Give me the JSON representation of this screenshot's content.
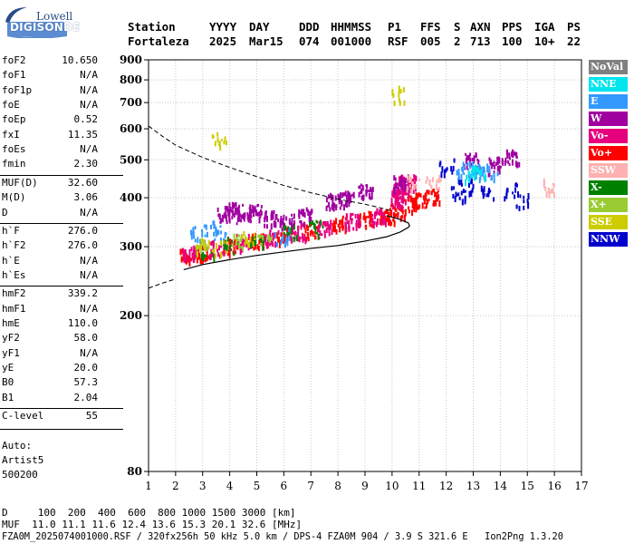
{
  "logo": {
    "line1": "Lowell",
    "line2": "DIGISONDE"
  },
  "header": {
    "row1": [
      "Station",
      "YYYY",
      "DAY",
      "DDD",
      "HHMMSS",
      "P1",
      "FFS",
      "S",
      "AXN",
      "PPS",
      "IGA",
      "PS"
    ],
    "row2": [
      "Fortaleza",
      "2025",
      "Mar15",
      "074",
      "001000",
      "RSF",
      "005",
      "2",
      "713",
      "100",
      "10+",
      "22"
    ]
  },
  "params": [
    {
      "group": 1,
      "name": "foF2",
      "value": "10.650"
    },
    {
      "group": 1,
      "name": "foF1",
      "value": "N/A"
    },
    {
      "group": 1,
      "name": "foF1p",
      "value": "N/A"
    },
    {
      "group": 1,
      "name": "foE",
      "value": "N/A"
    },
    {
      "group": 1,
      "name": "foEp",
      "value": "0.52"
    },
    {
      "group": 1,
      "name": "fxI",
      "value": "11.35"
    },
    {
      "group": 1,
      "name": "foEs",
      "value": "N/A"
    },
    {
      "group": 1,
      "name": "fmin",
      "value": "2.30"
    },
    {
      "group": 2,
      "name": "MUF(D)",
      "value": "32.60"
    },
    {
      "group": 2,
      "name": "M(D)",
      "value": "3.06"
    },
    {
      "group": 2,
      "name": "D",
      "value": "N/A"
    },
    {
      "group": 3,
      "name": "h`F",
      "value": "276.0"
    },
    {
      "group": 3,
      "name": "h`F2",
      "value": "276.0"
    },
    {
      "group": 3,
      "name": "h`E",
      "value": "N/A"
    },
    {
      "group": 3,
      "name": "h`Es",
      "value": "N/A"
    },
    {
      "group": 4,
      "name": "hmF2",
      "value": "339.2"
    },
    {
      "group": 4,
      "name": "hmF1",
      "value": "N/A"
    },
    {
      "group": 4,
      "name": "hmE",
      "value": "110.0"
    },
    {
      "group": 4,
      "name": "yF2",
      "value": "58.0"
    },
    {
      "group": 4,
      "name": "yF1",
      "value": "N/A"
    },
    {
      "group": 4,
      "name": "yE",
      "value": "20.0"
    },
    {
      "group": 4,
      "name": "B0",
      "value": "57.3"
    },
    {
      "group": 4,
      "name": "B1",
      "value": "2.04"
    },
    {
      "group": 5,
      "name": "C-level",
      "value": "55"
    }
  ],
  "autoscaling": {
    "line1": "Auto:",
    "line2": "Artist5",
    "line3": "500200"
  },
  "footer": {
    "d_row": "D     100  200  400  600  800 1000 1500 3000 [km]",
    "muf_row": "MUF  11.0 11.1 11.6 12.4 13.6 15.3 20.1 32.6 [MHz]",
    "file_row": "FZA0M_2025074001000.RSF / 320fx256h 50 kHz 5.0 km / DPS-4 FZA0M 904 / 3.9 S 321.6 E   Ion2Png 1.3.20"
  },
  "legend": [
    {
      "label": "NoVal",
      "color": "#808080"
    },
    {
      "label": "NNE",
      "color": "#00e5ee"
    },
    {
      "label": "E",
      "color": "#3399ff"
    },
    {
      "label": "W",
      "color": "#a000a0"
    },
    {
      "label": "Vo-",
      "color": "#e6007e"
    },
    {
      "label": "Vo+",
      "color": "#ff0000"
    },
    {
      "label": "SSW",
      "color": "#ffb0b0"
    },
    {
      "label": "X-",
      "color": "#008000"
    },
    {
      "label": "X+",
      "color": "#99cc33"
    },
    {
      "label": "SSE",
      "color": "#cccc00"
    },
    {
      "label": "NNW",
      "color": "#0000cc"
    }
  ],
  "chart_data": {
    "type": "scatter",
    "x_axis": {
      "range": [
        1,
        17
      ],
      "ticks": [
        "1",
        "2",
        "3",
        "4",
        "5",
        "6",
        "7",
        "8",
        "9",
        "10",
        "11",
        "12",
        "13",
        "14",
        "15",
        "16",
        "17"
      ]
    },
    "y_axis": {
      "range": [
        80,
        900
      ],
      "scale": "log",
      "ticks": [
        "80",
        "200",
        "300",
        "400",
        "500",
        "600",
        "700",
        "800",
        "900"
      ]
    },
    "grid": true,
    "legend_position": "right",
    "profile_line": [
      [
        2.3,
        262
      ],
      [
        3,
        270
      ],
      [
        4,
        278
      ],
      [
        5,
        285
      ],
      [
        6,
        291
      ],
      [
        7,
        297
      ],
      [
        8,
        302
      ],
      [
        9,
        310
      ],
      [
        9.8,
        318
      ],
      [
        10.3,
        327
      ],
      [
        10.6,
        336
      ],
      [
        10.65,
        339
      ],
      [
        10.6,
        345
      ],
      [
        10.3,
        352
      ],
      [
        10.0,
        357
      ],
      [
        9.8,
        360
      ]
    ],
    "dashed_trace": [
      [
        1,
        610
      ],
      [
        1.5,
        575
      ],
      [
        2,
        545
      ],
      [
        3,
        507
      ],
      [
        4,
        478
      ],
      [
        5,
        453
      ],
      [
        6,
        430
      ],
      [
        7,
        412
      ],
      [
        8,
        397
      ],
      [
        9,
        385
      ],
      [
        9.5,
        378
      ],
      [
        10,
        370
      ]
    ],
    "lower_dashed": [
      [
        1,
        235
      ],
      [
        1.5,
        242
      ],
      [
        2,
        248
      ]
    ],
    "traces": [
      {
        "series": "Vo+",
        "points": [
          [
            2.4,
            285
          ],
          [
            3,
            292
          ],
          [
            4,
            302
          ],
          [
            5,
            312
          ],
          [
            6,
            323
          ],
          [
            7,
            333
          ],
          [
            8,
            345
          ],
          [
            9,
            355
          ],
          [
            9.8,
            363
          ],
          [
            10.2,
            375
          ],
          [
            10.6,
            390
          ],
          [
            11,
            397
          ],
          [
            11.5,
            405
          ]
        ]
      },
      {
        "series": "Vo-",
        "points": [
          [
            2.5,
            290
          ],
          [
            3.5,
            300
          ],
          [
            4.5,
            310
          ],
          [
            5.5,
            318
          ],
          [
            6.5,
            330
          ],
          [
            7.5,
            340
          ],
          [
            8.5,
            352
          ],
          [
            9.5,
            362
          ],
          [
            10.2,
            400
          ],
          [
            10.3,
            420
          ],
          [
            10.4,
            435
          ],
          [
            10.6,
            440
          ]
        ]
      },
      {
        "series": "W",
        "points": [
          [
            3.8,
            365
          ],
          [
            4.2,
            375
          ],
          [
            4.5,
            360
          ],
          [
            4.9,
            370
          ],
          [
            5.5,
            358
          ],
          [
            6.1,
            352
          ],
          [
            6.8,
            362
          ],
          [
            7.8,
            395
          ],
          [
            8.3,
            400
          ],
          [
            9.0,
            420
          ],
          [
            10.3,
            440
          ],
          [
            12.9,
            500
          ],
          [
            13.8,
            490
          ],
          [
            14.4,
            512
          ]
        ]
      },
      {
        "series": "E",
        "points": [
          [
            2.8,
            325
          ],
          [
            3.2,
            335
          ],
          [
            3.6,
            330
          ],
          [
            5.9,
            322
          ],
          [
            12.6,
            465
          ],
          [
            12.8,
            480
          ],
          [
            13.1,
            478
          ],
          [
            13.3,
            472
          ],
          [
            13.6,
            465
          ]
        ]
      },
      {
        "series": "NNE",
        "points": [
          [
            12.9,
            465
          ],
          [
            13.2,
            475
          ]
        ]
      },
      {
        "series": "NNW",
        "points": [
          [
            12.0,
            485
          ],
          [
            12.4,
            410
          ],
          [
            12.7,
            430
          ],
          [
            13.5,
            420
          ],
          [
            14.4,
            420
          ],
          [
            14.8,
            395
          ]
        ]
      },
      {
        "series": "X-",
        "points": [
          [
            3.2,
            298
          ],
          [
            4.0,
            305
          ],
          [
            5.0,
            316
          ],
          [
            6.2,
            330
          ],
          [
            7.2,
            338
          ]
        ]
      },
      {
        "series": "X+",
        "points": [
          [
            2.9,
            302
          ],
          [
            4.3,
            310
          ],
          [
            5.3,
            320
          ]
        ]
      },
      {
        "series": "SSE",
        "points": [
          [
            3.0,
            305
          ],
          [
            3.6,
            298
          ],
          [
            4.7,
            318
          ],
          [
            10.2,
            740
          ],
          [
            3.6,
            570
          ]
        ]
      },
      {
        "series": "SSW",
        "points": [
          [
            10.8,
            440
          ],
          [
            11.5,
            445
          ],
          [
            15.8,
            430
          ]
        ]
      }
    ]
  }
}
